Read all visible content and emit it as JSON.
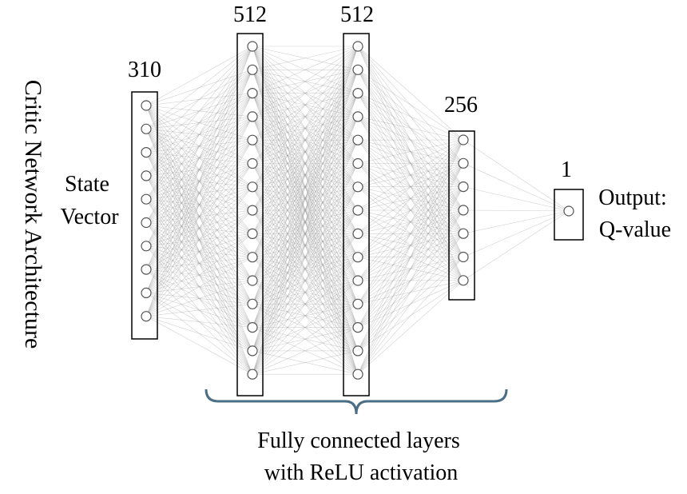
{
  "title": "Critic Network Architecture",
  "input_label_line1": "State",
  "input_label_line2": "Vector",
  "output_label_line1": "Output:",
  "output_label_line2": "Q-value",
  "brace_caption_line1": "Fully connected layers",
  "brace_caption_line2": "with ReLU activation",
  "layers": [
    {
      "size_label": "310",
      "nodes_drawn": 10
    },
    {
      "size_label": "512",
      "nodes_drawn": 15
    },
    {
      "size_label": "512",
      "nodes_drawn": 15
    },
    {
      "size_label": "256",
      "nodes_drawn": 7
    },
    {
      "size_label": "1",
      "nodes_drawn": 1
    }
  ],
  "colors": {
    "brace": "#4a6e86",
    "edge": "#9a9a9a",
    "box": "#000000",
    "node_stroke": "#555555"
  }
}
